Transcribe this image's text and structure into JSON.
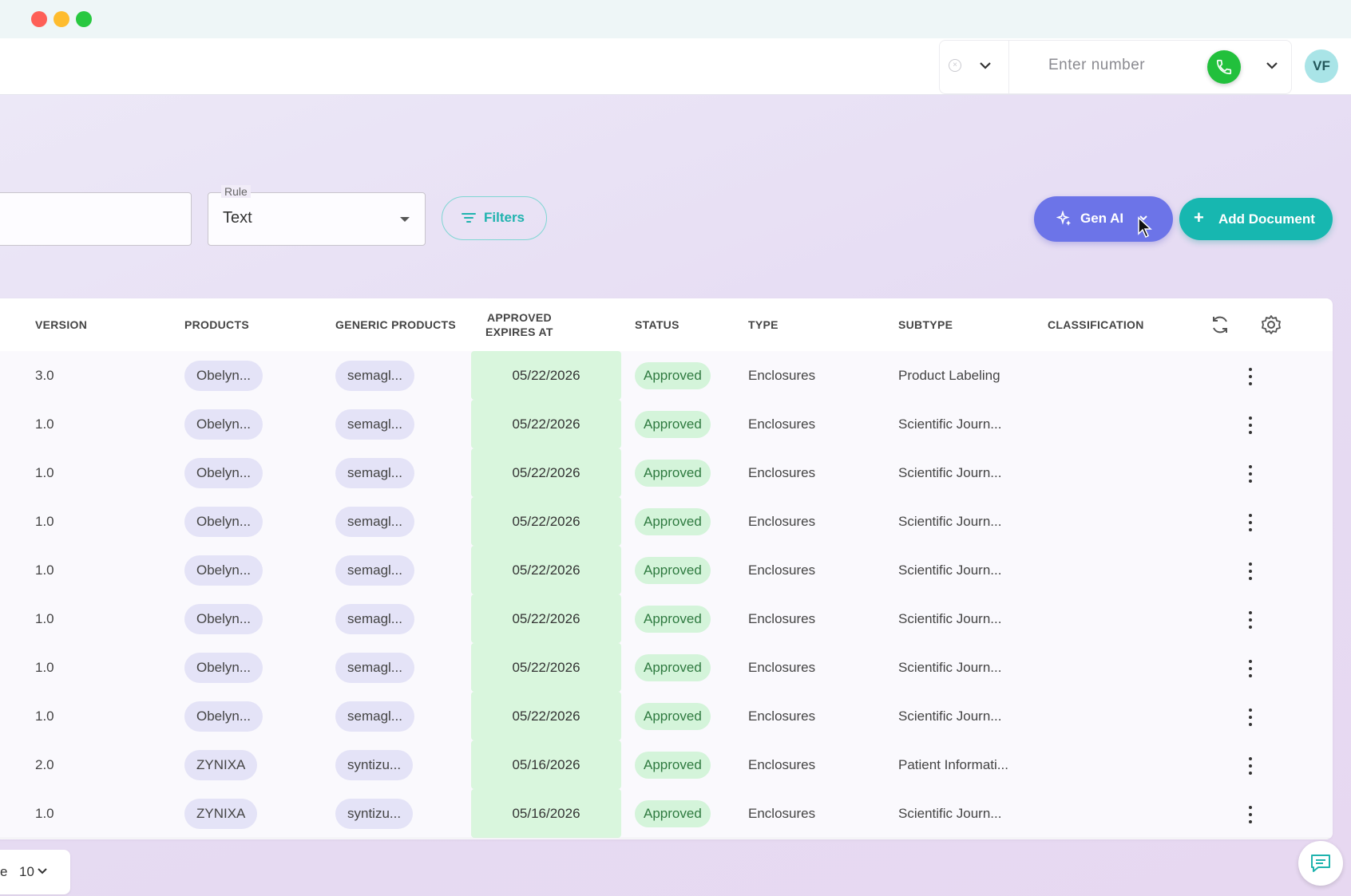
{
  "topbar": {
    "phone_placeholder": "Enter number",
    "avatar_initials": "VF"
  },
  "toolbar": {
    "rule_label": "Rule",
    "rule_value": "Text",
    "filters_label": "Filters",
    "genai_label": "Gen AI",
    "add_document_label": "Add Document"
  },
  "table": {
    "headers": {
      "version": "VERSION",
      "products": "PRODUCTS",
      "generic_products": "GENERIC PRODUCTS",
      "approved_expires_line1": "APPROVED",
      "approved_expires_line2": "EXPIRES AT",
      "status": "STATUS",
      "type": "TYPE",
      "subtype": "SUBTYPE",
      "classification": "CLASSIFICATION"
    },
    "rows": [
      {
        "version": "3.0",
        "product": "Obelyn...",
        "generic": "semagl...",
        "expires": "05/22/2026",
        "status": "Approved",
        "type": "Enclosures",
        "subtype": "Product Labeling",
        "classification": ""
      },
      {
        "version": "1.0",
        "product": "Obelyn...",
        "generic": "semagl...",
        "expires": "05/22/2026",
        "status": "Approved",
        "type": "Enclosures",
        "subtype": "Scientific Journ...",
        "classification": ""
      },
      {
        "version": "1.0",
        "product": "Obelyn...",
        "generic": "semagl...",
        "expires": "05/22/2026",
        "status": "Approved",
        "type": "Enclosures",
        "subtype": "Scientific Journ...",
        "classification": ""
      },
      {
        "version": "1.0",
        "product": "Obelyn...",
        "generic": "semagl...",
        "expires": "05/22/2026",
        "status": "Approved",
        "type": "Enclosures",
        "subtype": "Scientific Journ...",
        "classification": ""
      },
      {
        "version": "1.0",
        "product": "Obelyn...",
        "generic": "semagl...",
        "expires": "05/22/2026",
        "status": "Approved",
        "type": "Enclosures",
        "subtype": "Scientific Journ...",
        "classification": ""
      },
      {
        "version": "1.0",
        "product": "Obelyn...",
        "generic": "semagl...",
        "expires": "05/22/2026",
        "status": "Approved",
        "type": "Enclosures",
        "subtype": "Scientific Journ...",
        "classification": ""
      },
      {
        "version": "1.0",
        "product": "Obelyn...",
        "generic": "semagl...",
        "expires": "05/22/2026",
        "status": "Approved",
        "type": "Enclosures",
        "subtype": "Scientific Journ...",
        "classification": ""
      },
      {
        "version": "1.0",
        "product": "Obelyn...",
        "generic": "semagl...",
        "expires": "05/22/2026",
        "status": "Approved",
        "type": "Enclosures",
        "subtype": "Scientific Journ...",
        "classification": ""
      },
      {
        "version": "2.0",
        "product": "ZYNIXA",
        "generic": "syntizu...",
        "expires": "05/16/2026",
        "status": "Approved",
        "type": "Enclosures",
        "subtype": "Patient Informati...",
        "classification": ""
      },
      {
        "version": "1.0",
        "product": "ZYNIXA",
        "generic": "syntizu...",
        "expires": "05/16/2026",
        "status": "Approved",
        "type": "Enclosures",
        "subtype": "Scientific Journ...",
        "classification": ""
      }
    ]
  },
  "pagination": {
    "rows_label": "e",
    "rows_per_page": "10"
  },
  "colors": {
    "accent_teal": "#17b7b0",
    "genai_purple": "#6c74e8",
    "status_green_bg": "#d4f4da",
    "phone_green": "#22c03c"
  },
  "icons": [
    "close-circle-icon",
    "chevron-down-icon",
    "phone-icon",
    "filter-icon",
    "sparkle-icon",
    "plus-icon",
    "refresh-icon",
    "gear-icon",
    "kebab-icon",
    "chat-icon",
    "cursor-icon"
  ]
}
